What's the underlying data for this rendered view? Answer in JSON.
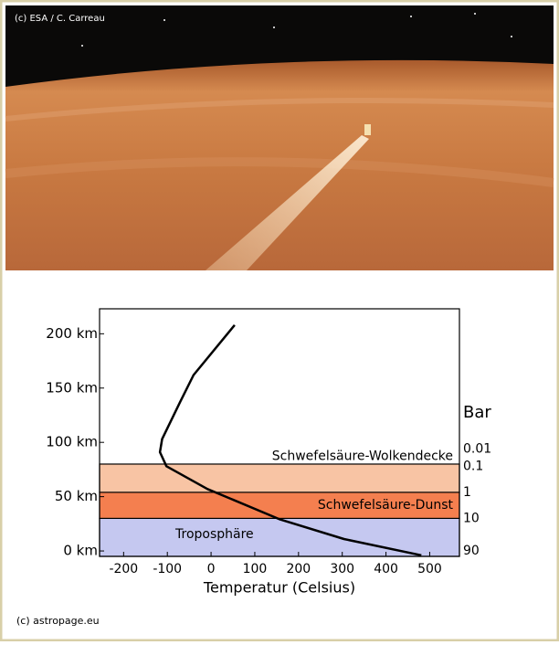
{
  "photo_credit": "(c) ESA / C. Carreau",
  "footer": "(c) astropage.eu",
  "chart_data": {
    "type": "line",
    "x_label": "Temperatur (Celsius)",
    "y2_label": "Bar",
    "xlim": [
      -255,
      568
    ],
    "xticks": [
      -200,
      -100,
      0,
      100,
      200,
      300,
      400,
      500
    ],
    "ylim": [
      -5,
      223
    ],
    "yticks": [
      {
        "value": 0,
        "label": "0 km"
      },
      {
        "value": 50,
        "label": "50 km"
      },
      {
        "value": 100,
        "label": "100 km"
      },
      {
        "value": 150,
        "label": "150 km"
      },
      {
        "value": 200,
        "label": "200 km"
      }
    ],
    "pressure_levels": [
      {
        "label": "0.01",
        "value": 94
      },
      {
        "label": "0.1",
        "value": 78
      },
      {
        "label": "1",
        "value": 54
      },
      {
        "label": "10",
        "value": 30
      },
      {
        "label": "90",
        "value": 0
      }
    ],
    "layers": [
      {
        "name": "Troposphäre",
        "from": -5,
        "to": 30,
        "color": "#c5c8f0"
      },
      {
        "name": "Schwefelsäure-Dunst",
        "from": 30,
        "to": 54,
        "color": "#f47f4f"
      },
      {
        "name": "Schwefelsäure-Wolkendecke",
        "from": 54,
        "to": 80,
        "color": "#f8c4a4"
      }
    ],
    "series": [
      {
        "name": null,
        "color": "#000000",
        "x": [
          54,
          -40,
          -71,
          -112,
          -117,
          -102,
          -8,
          158,
          304,
          481
        ],
        "values": [
          208,
          162,
          137,
          103,
          91,
          78,
          57,
          29,
          11,
          -4
        ]
      }
    ]
  }
}
